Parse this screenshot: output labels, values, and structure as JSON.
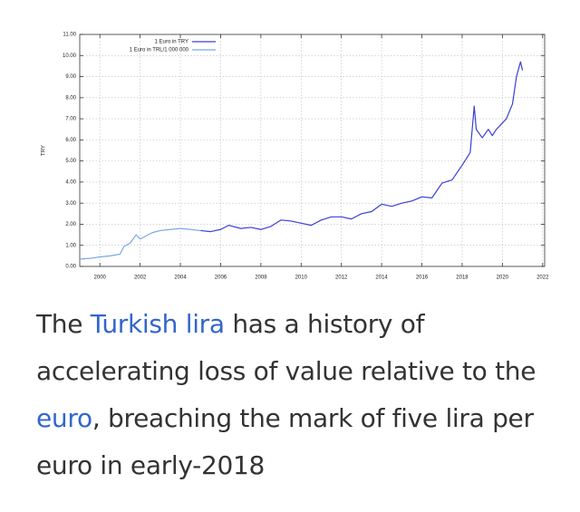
{
  "chart_data": {
    "type": "line",
    "ylabel": "TRY",
    "xlim": [
      1999,
      2022.1
    ],
    "xticks": [
      2000,
      2002,
      2004,
      2006,
      2008,
      2010,
      2012,
      2014,
      2016,
      2018,
      2020,
      2022
    ],
    "ylim": [
      0,
      11
    ],
    "yticks": [
      {
        "value": 0,
        "label": "0.00"
      },
      {
        "value": 1,
        "label": "1.00"
      },
      {
        "value": 2,
        "label": "2.00"
      },
      {
        "value": 3,
        "label": "3.00"
      },
      {
        "value": 4,
        "label": "4.00"
      },
      {
        "value": 5,
        "label": "5.00"
      },
      {
        "value": 6,
        "label": "6.00"
      },
      {
        "value": 7,
        "label": "7.00"
      },
      {
        "value": 8,
        "label": "8.00"
      },
      {
        "value": 9,
        "label": "9.00"
      },
      {
        "value": 10,
        "label": "10.00"
      },
      {
        "value": 11,
        "label": "11.00"
      }
    ],
    "grid": true,
    "legend": "upper left",
    "series": [
      {
        "name": "1 Euro in TRY",
        "color": "#3a3fd6",
        "x": [
          2005,
          2005.5,
          2006,
          2006.4,
          2007,
          2007.5,
          2008,
          2008.5,
          2009,
          2009.5,
          2010,
          2010.5,
          2011,
          2011.5,
          2012,
          2012.5,
          2013,
          2013.5,
          2014,
          2014.5,
          2015,
          2015.5,
          2016,
          2016.5,
          2017,
          2017.5,
          2018,
          2018.4,
          2018.6,
          2018.7,
          2019,
          2019.3,
          2019.5,
          2019.7,
          2019.9,
          2020.2,
          2020.5,
          2020.7,
          2020.9,
          2021
        ],
        "values": [
          1.7,
          1.65,
          1.75,
          1.95,
          1.8,
          1.85,
          1.75,
          1.9,
          2.2,
          2.15,
          2.05,
          1.95,
          2.2,
          2.35,
          2.35,
          2.25,
          2.5,
          2.6,
          2.95,
          2.85,
          3.0,
          3.1,
          3.3,
          3.25,
          3.95,
          4.1,
          4.8,
          5.4,
          7.6,
          6.5,
          6.1,
          6.5,
          6.2,
          6.5,
          6.7,
          7.0,
          7.7,
          9.0,
          9.7,
          9.3
        ]
      },
      {
        "name": "1 Euro in TRL/1 000 000",
        "color": "#7aa6e8",
        "x": [
          1999,
          1999.5,
          2000,
          2000.5,
          2001,
          2001.2,
          2001.5,
          2001.8,
          2002,
          2002.3,
          2002.6,
          2003,
          2003.5,
          2004,
          2004.5,
          2005
        ],
        "values": [
          0.35,
          0.38,
          0.45,
          0.5,
          0.58,
          0.95,
          1.1,
          1.5,
          1.3,
          1.45,
          1.6,
          1.7,
          1.75,
          1.8,
          1.75,
          1.7
        ]
      }
    ]
  },
  "caption": {
    "parts": [
      "The ",
      "Turkish lira",
      " has a history of accelerating loss of value relative to the ",
      "euro",
      ", breaching the mark of five lira per euro in early-2018"
    ]
  }
}
